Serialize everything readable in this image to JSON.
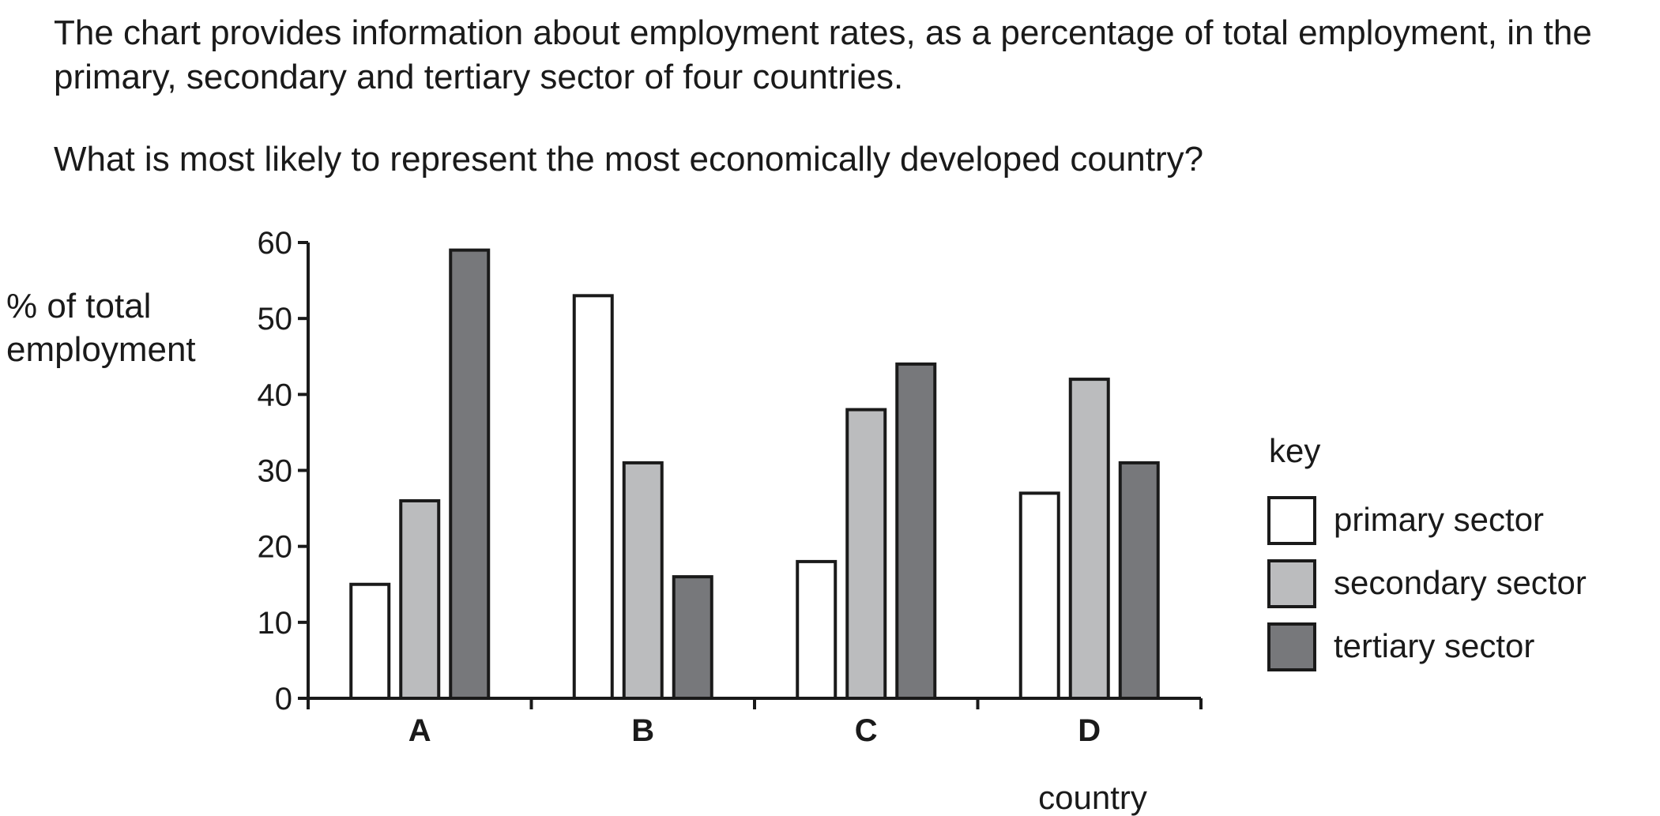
{
  "question": {
    "intro": "The chart provides information about employment rates, as a percentage of total employment, in the primary, secondary and tertiary sector of four countries.",
    "prompt": "What is most likely to represent the most economically developed country?"
  },
  "chart_data": {
    "type": "bar",
    "categories": [
      "A",
      "B",
      "C",
      "D"
    ],
    "series": [
      {
        "name": "primary sector",
        "values": [
          15,
          53,
          18,
          27
        ],
        "color": "#ffffff"
      },
      {
        "name": "secondary sector",
        "values": [
          26,
          31,
          38,
          42
        ],
        "color": "#bbbcbe"
      },
      {
        "name": "tertiary sector",
        "values": [
          59,
          16,
          44,
          31
        ],
        "color": "#77787b"
      }
    ],
    "xlabel": "country",
    "ylabel_lines": [
      "% of total",
      "employment"
    ],
    "ylim": [
      0,
      60
    ],
    "yticks": [
      0,
      10,
      20,
      30,
      40,
      50,
      60
    ],
    "legend_title": "key",
    "legend_position": "right",
    "grid": false
  }
}
